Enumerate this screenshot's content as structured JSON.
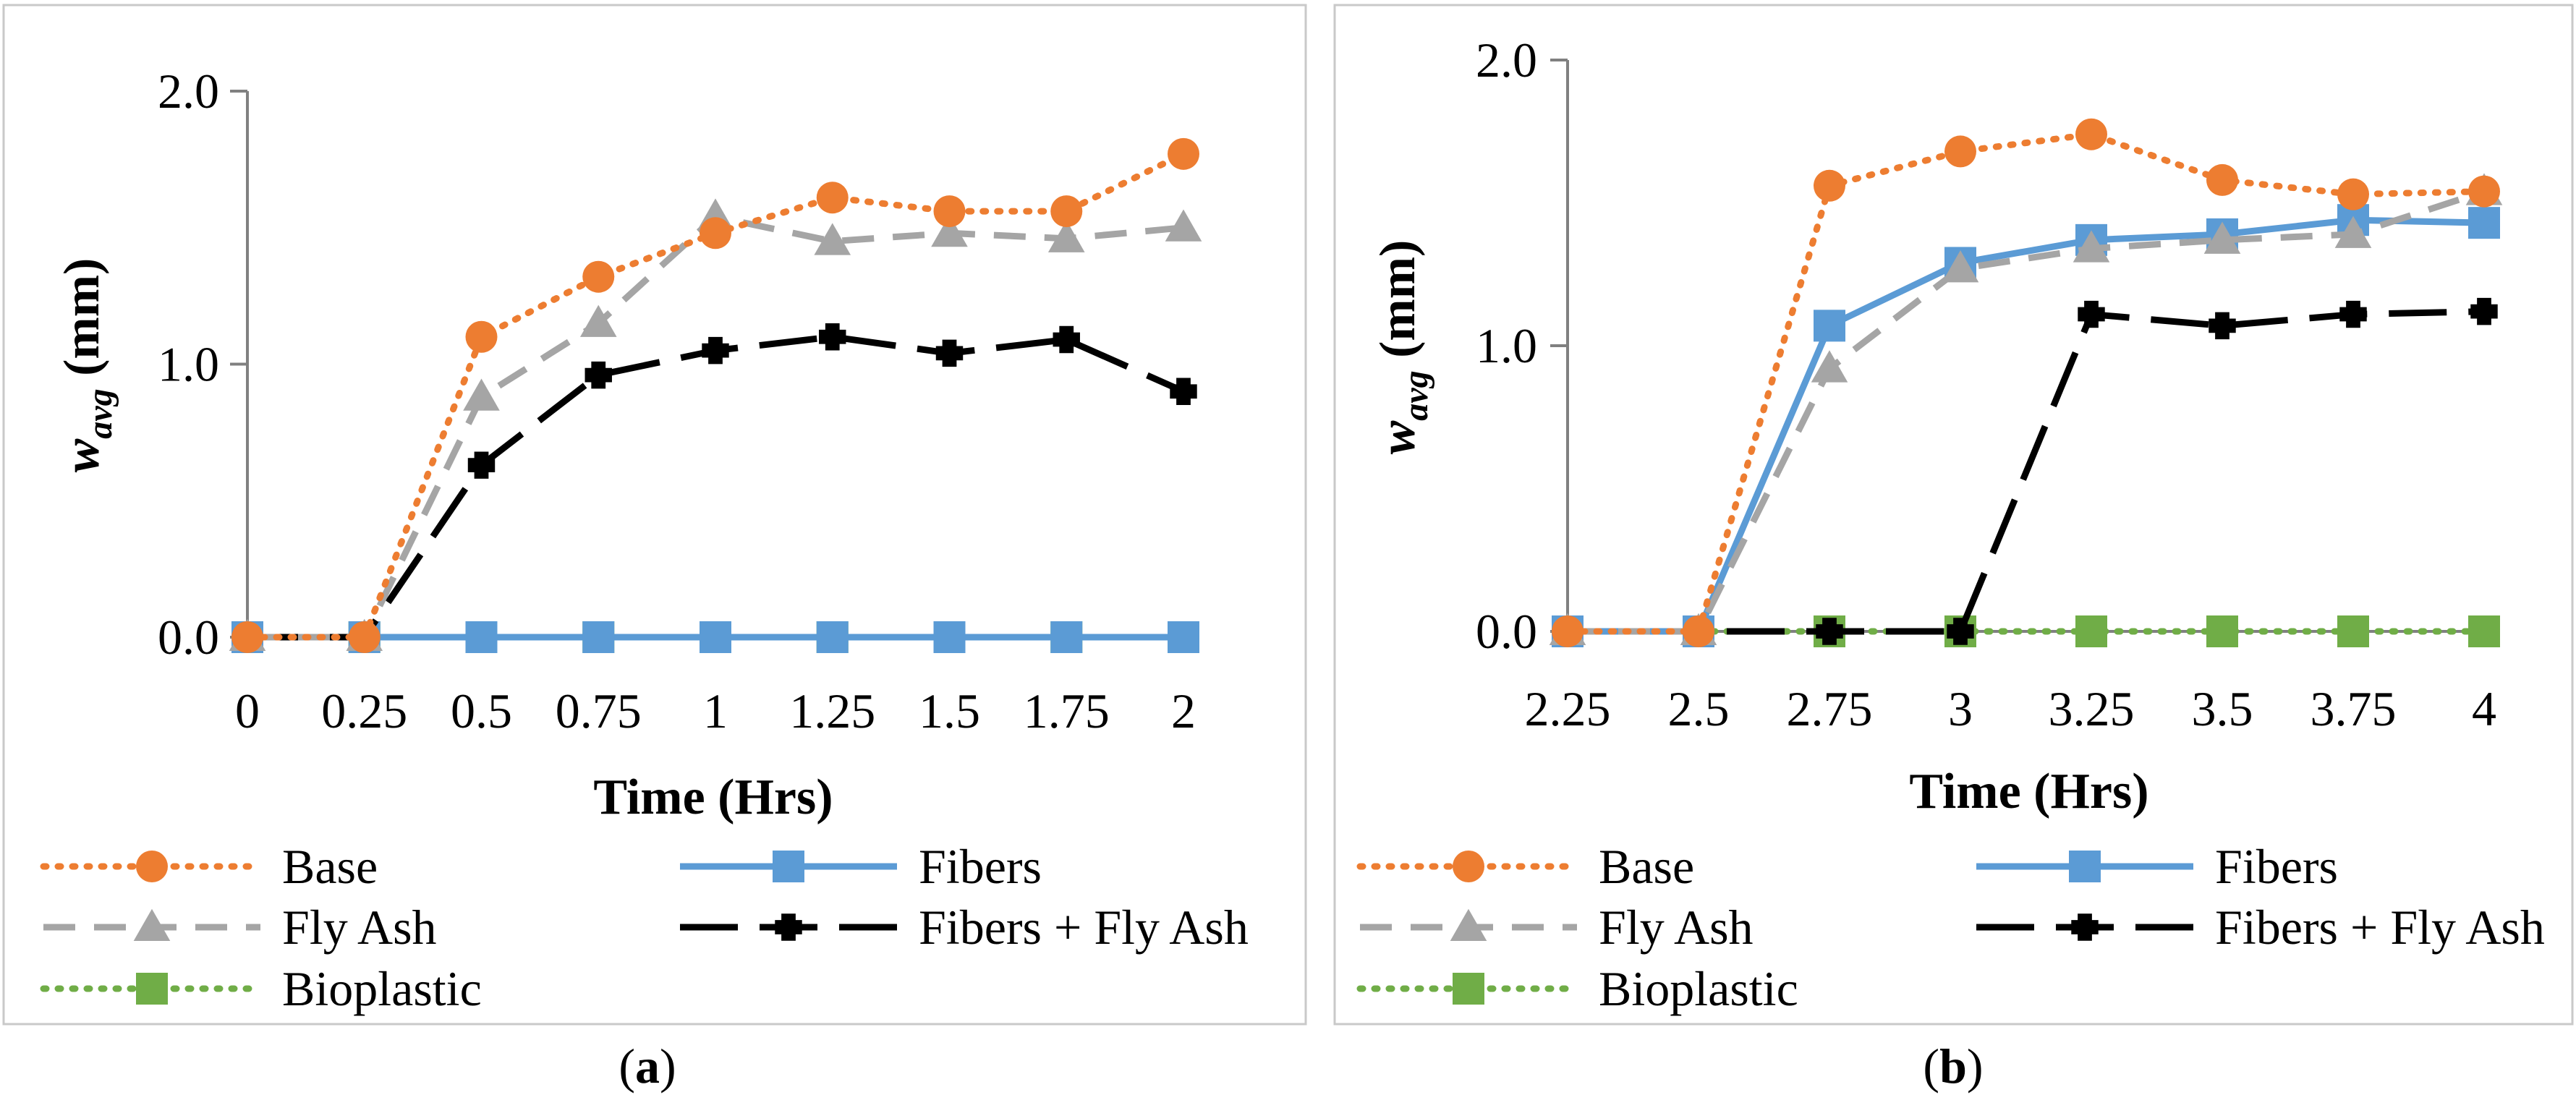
{
  "panel_labels": [
    "a",
    "b"
  ],
  "styles": {
    "Base": {
      "color": "#ED7D31",
      "dash": "dotted",
      "marker": "circle"
    },
    "Fibers": {
      "color": "#5B9BD5",
      "dash": "solid",
      "marker": "square"
    },
    "Fly Ash": {
      "color": "#A5A5A5",
      "dash": "dashed",
      "marker": "triangle"
    },
    "Fibers + Fly Ash": {
      "color": "#000000",
      "dash": "longdash",
      "marker": "star"
    },
    "Bioplastic": {
      "color": "#70AD47",
      "dash": "dotted",
      "marker": "square"
    }
  },
  "chart_data": [
    {
      "type": "line",
      "panel": "a",
      "xlabel": "Time (Hrs)",
      "ylabel_main": "w",
      "ylabel_sub": "avg",
      "ylabel_unit": " (mm)",
      "ylim": [
        0,
        2
      ],
      "y_ticks": [
        "0.0",
        "1.0",
        "2.0"
      ],
      "categories": [
        "0",
        "0.25",
        "0.5",
        "0.75",
        "1",
        "1.25",
        "1.5",
        "1.75",
        "2"
      ],
      "series": [
        {
          "name": "Base",
          "values": [
            0,
            0,
            1.1,
            1.32,
            1.48,
            1.61,
            1.56,
            1.56,
            1.77
          ]
        },
        {
          "name": "Fly Ash",
          "values": [
            0,
            0,
            0.88,
            1.15,
            1.54,
            1.45,
            1.48,
            1.46,
            1.5
          ]
        },
        {
          "name": "Fibers + Fly Ash",
          "values": [
            0,
            0,
            0.63,
            0.96,
            1.05,
            1.1,
            1.04,
            1.09,
            0.9
          ]
        },
        {
          "name": "Fibers",
          "values": [
            0,
            0,
            0,
            0,
            0,
            0,
            0,
            0,
            0
          ]
        },
        {
          "name": "Bioplastic",
          "values": [
            0,
            0,
            0,
            0,
            0,
            0,
            0,
            0,
            0
          ]
        }
      ],
      "legend": [
        "Base",
        "Fibers",
        "Fly Ash",
        "Fibers + Fly Ash",
        "Bioplastic"
      ]
    },
    {
      "type": "line",
      "panel": "b",
      "xlabel": "Time (Hrs)",
      "ylabel_main": "w",
      "ylabel_sub": "avg",
      "ylabel_unit": " (mm)",
      "ylim": [
        0,
        2
      ],
      "y_ticks": [
        "0.0",
        "1.0",
        "2.0"
      ],
      "categories": [
        "2.25",
        "2.5",
        "2.75",
        "3",
        "3.25",
        "3.5",
        "3.75",
        "4"
      ],
      "series": [
        {
          "name": "Base",
          "values": [
            0,
            0,
            1.56,
            1.68,
            1.74,
            1.58,
            1.53,
            1.54
          ]
        },
        {
          "name": "Fly Ash",
          "values": [
            0,
            0,
            0.92,
            1.27,
            1.34,
            1.37,
            1.39,
            1.54
          ]
        },
        {
          "name": "Fibers",
          "values": [
            0,
            0,
            1.07,
            1.29,
            1.37,
            1.39,
            1.44,
            1.43
          ]
        },
        {
          "name": "Fibers + Fly Ash",
          "values": [
            0,
            0,
            0,
            0,
            1.11,
            1.07,
            1.11,
            1.12
          ]
        },
        {
          "name": "Bioplastic",
          "values": [
            0,
            0,
            0,
            0,
            0,
            0,
            0,
            0
          ]
        }
      ],
      "legend": [
        "Base",
        "Fibers",
        "Fly Ash",
        "Fibers + Fly Ash",
        "Bioplastic"
      ]
    }
  ]
}
